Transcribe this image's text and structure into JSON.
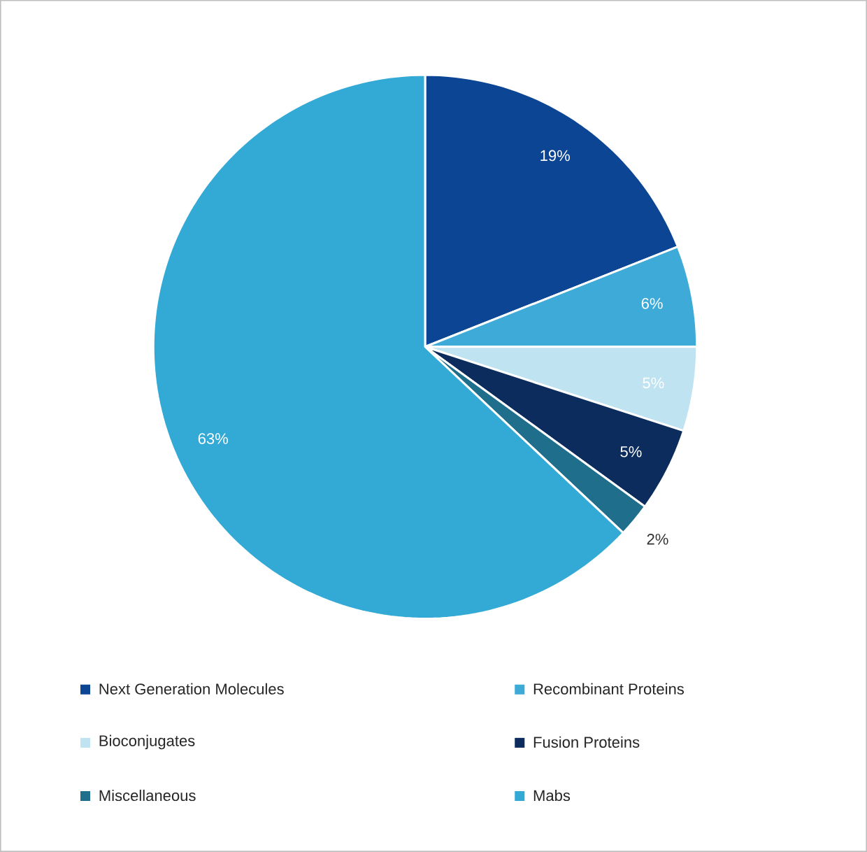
{
  "chart_data": {
    "type": "pie",
    "categories": [
      "Next Generation Molecules",
      "Recombinant Proteins",
      "Bioconjugates",
      "Fusion Proteins",
      "Miscellaneous",
      "Mabs"
    ],
    "values": [
      19,
      6,
      5,
      5,
      2,
      63
    ],
    "colors": [
      "#0b4594",
      "#3eaad8",
      "#bfe3f0",
      "#0b2c5c",
      "#1f6e8c",
      "#33a9d6"
    ],
    "value_labels": [
      "19%",
      "6%",
      "5%",
      "5%",
      "2%",
      "63%"
    ],
    "legend": "bottom"
  }
}
